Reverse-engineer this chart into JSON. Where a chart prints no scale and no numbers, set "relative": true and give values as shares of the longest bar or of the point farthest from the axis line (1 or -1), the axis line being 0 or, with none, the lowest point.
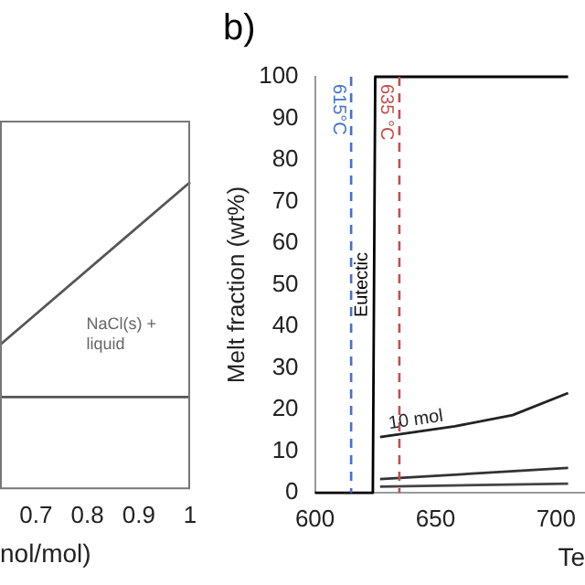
{
  "chart_data": [
    {
      "type": "line",
      "relative": true,
      "xlabel": "nol/mol)",
      "xlim": [
        0.63,
        1
      ],
      "xticks": [
        0.7,
        0.8,
        0.9,
        1
      ],
      "marker": "none",
      "series": [
        {
          "color": "#555555",
          "x": [
            0.63,
            1
          ],
          "values": [
            0.47,
            1
          ]
        },
        {
          "color": "#555555",
          "x": [
            0.63,
            1
          ],
          "values": [
            0.3,
            0.3
          ]
        }
      ],
      "annotations": [
        "NaCl(s) + liquid"
      ]
    },
    {
      "type": "line",
      "title": "b)",
      "xlabel": "Te",
      "ylabel": "Melt fraction (wt%)",
      "xlim": [
        600,
        712
      ],
      "xticks": [
        600,
        650,
        700
      ],
      "ylim": [
        0,
        100
      ],
      "yticks": [
        0,
        10,
        20,
        30,
        40,
        50,
        60,
        70,
        80,
        90,
        100
      ],
      "marker": "none",
      "series": [
        {
          "name": "Eutectic",
          "color": "#000000",
          "x": [
            600,
            624,
            625,
            705
          ],
          "values": [
            0,
            0,
            100,
            100
          ]
        },
        {
          "name": "10 mol",
          "color": "#222222",
          "x": [
            627,
            658,
            682,
            705
          ],
          "values": [
            13.4,
            16,
            18.7,
            24
          ]
        },
        {
          "color": "#333333",
          "x": [
            627,
            705
          ],
          "values": [
            3.3,
            6
          ]
        },
        {
          "color": "#444444",
          "x": [
            627,
            705
          ],
          "values": [
            1.5,
            2.2
          ]
        }
      ],
      "ref_lines": [
        {
          "axis": "x",
          "value": 615,
          "label": "615°C",
          "color": "#4472c4",
          "line_style": "dashed"
        },
        {
          "axis": "x",
          "value": 635,
          "label": "635 °C",
          "color": "#c0504d",
          "line_style": "dashed"
        }
      ]
    }
  ]
}
